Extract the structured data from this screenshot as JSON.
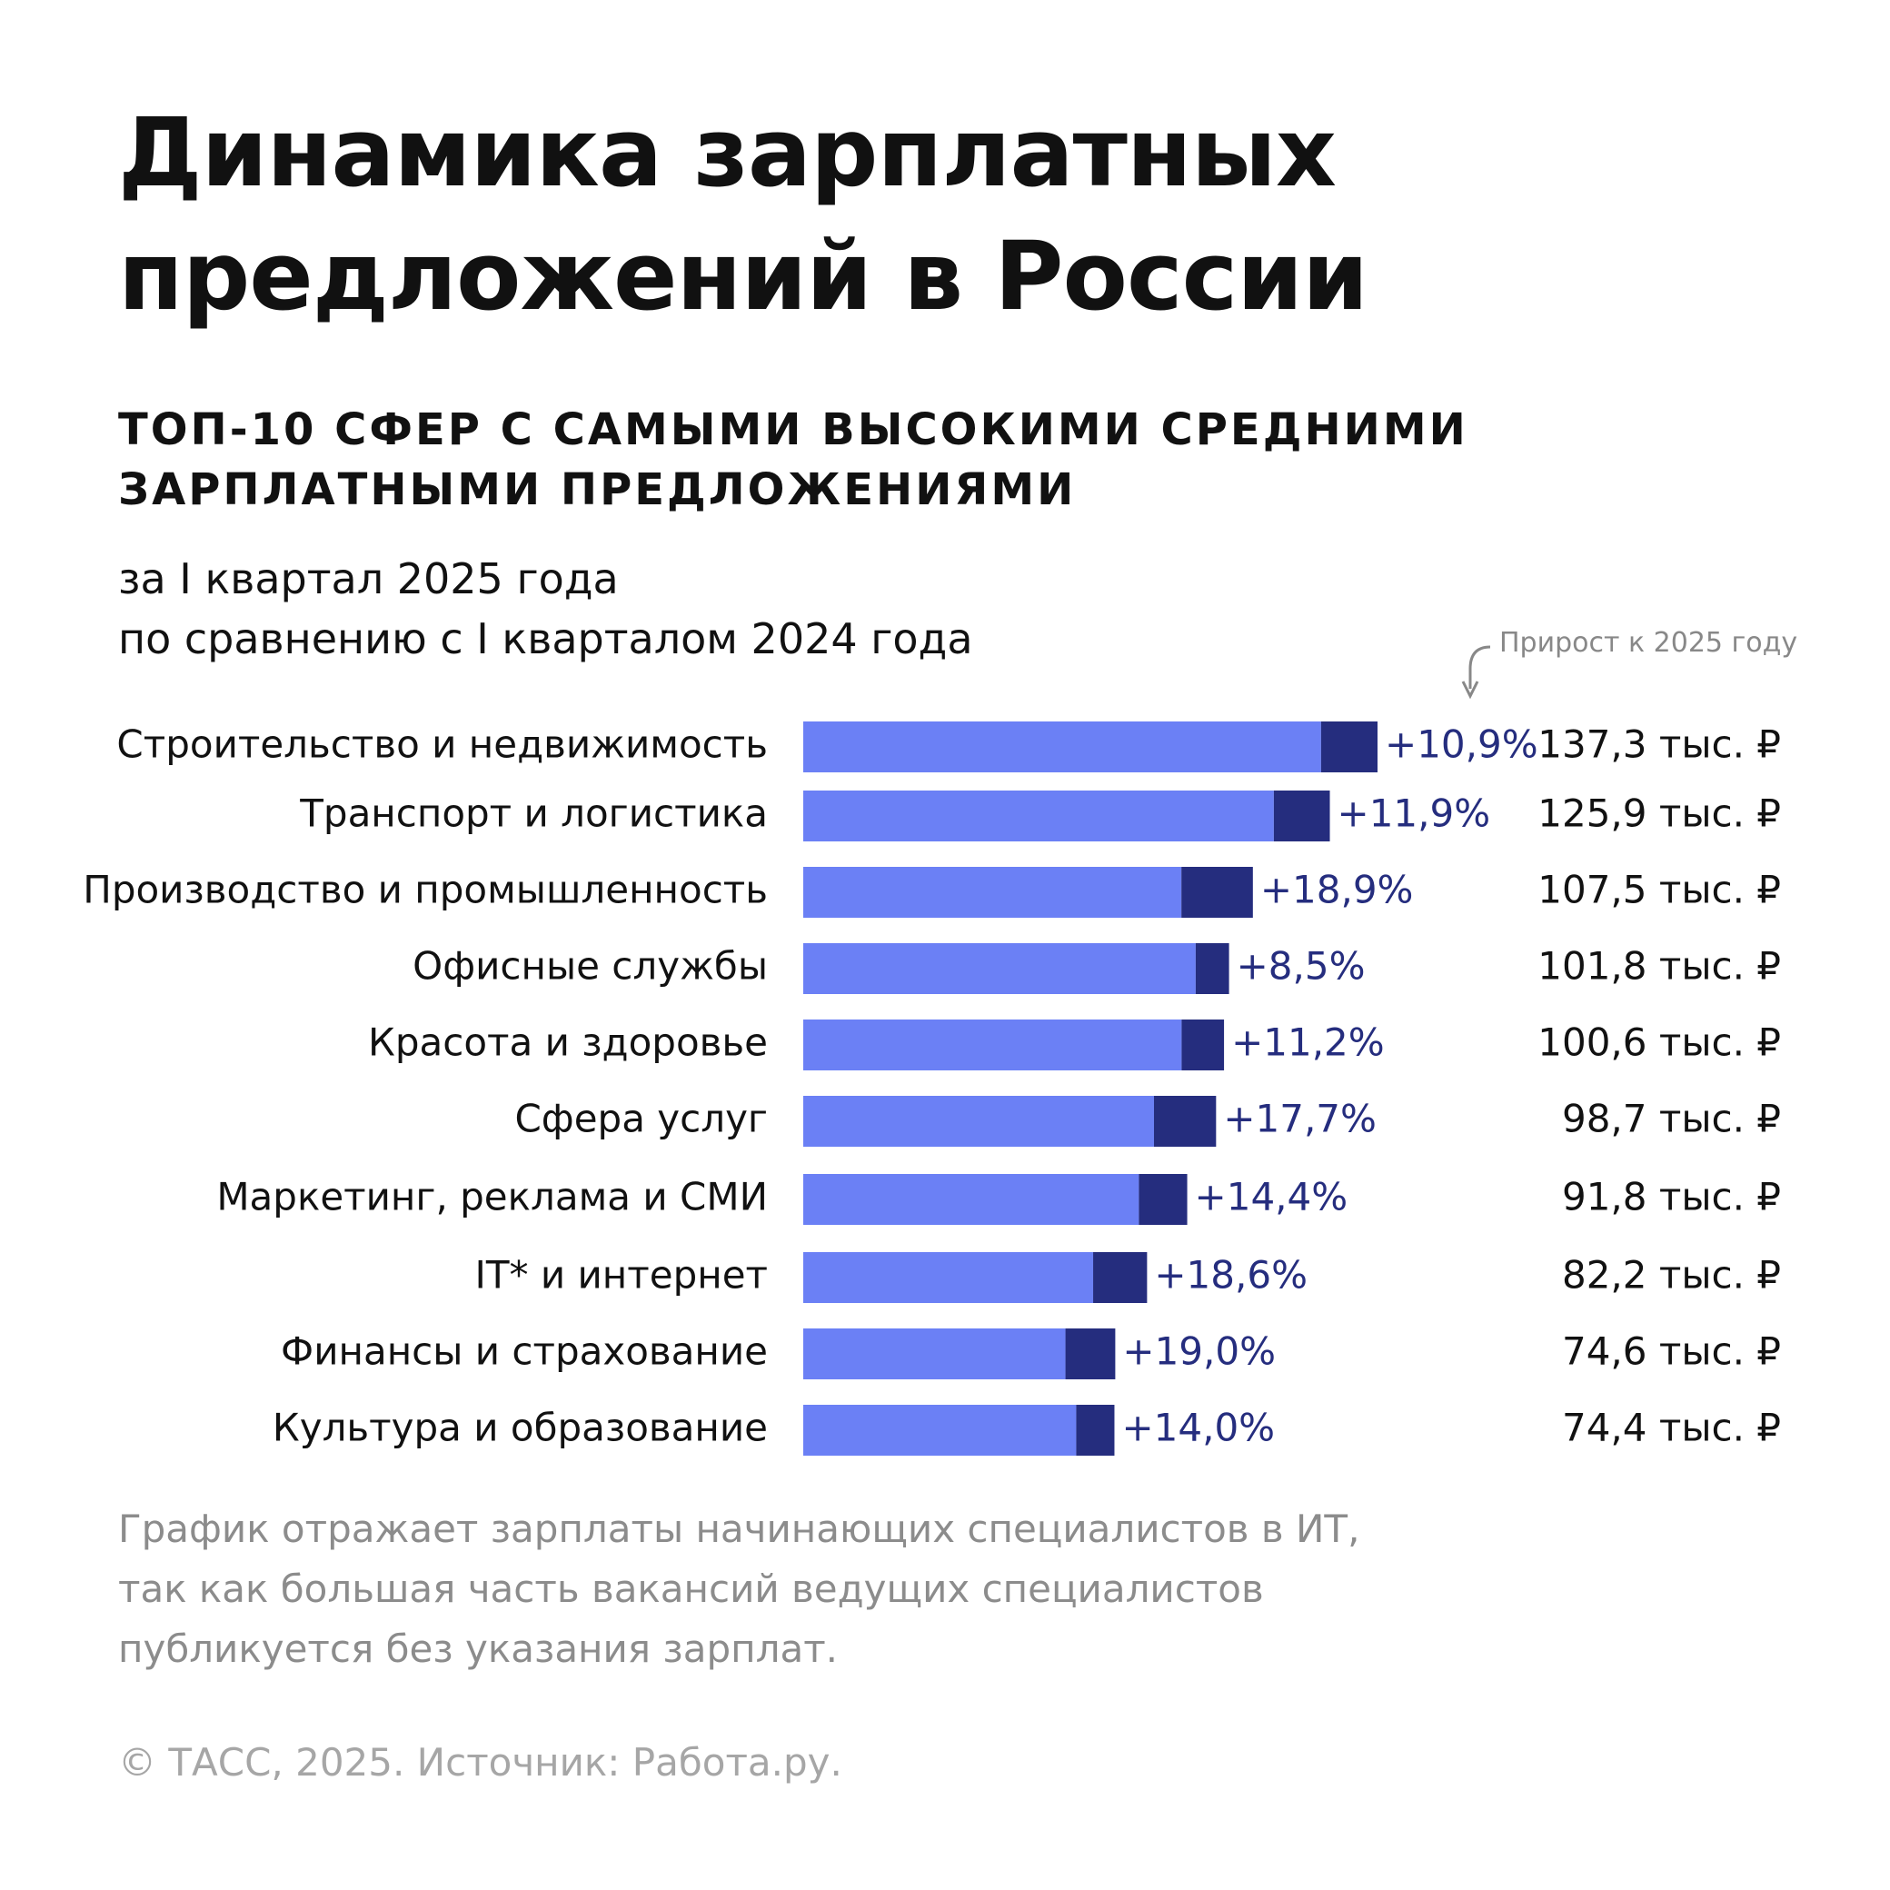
{
  "title_lines": [
    "Динамика зарплатных",
    "предложений в России"
  ],
  "subtitle_lines": [
    "ТОП-10 СФЕР С САМЫМИ ВЫСОКИМИ СРЕДНИМИ",
    "ЗАРПЛАТНЫМИ ПРЕДЛОЖЕНИЯМИ"
  ],
  "period_lines": [
    "за I квартал 2025 года",
    "по сравнению с I кварталом 2024 года"
  ],
  "growth_note": "Прирост к 2025 году",
  "colors": {
    "base": "#6b80f5",
    "growth": "#252d7e",
    "growth_label": "#252d7e",
    "text": "#111111",
    "muted": "#8c8c8c"
  },
  "chart_data": {
    "type": "bar",
    "orientation": "horizontal",
    "stacked": true,
    "unit": "тыс. ₽",
    "categories": [
      "Строительство и недвижимость",
      "Транспорт и логистика",
      "Производство и промышленность",
      "Офисные службы",
      "Красота и здоровье",
      "Сфера услуг",
      "Маркетинг, реклама и СМИ",
      "IT* и интернет",
      "Финансы и страхование",
      "Культура и образование"
    ],
    "values_2025": [
      137.3,
      125.9,
      107.5,
      101.8,
      100.6,
      98.7,
      91.8,
      82.2,
      74.6,
      74.4
    ],
    "value_labels": [
      "137,3 тыс. ₽",
      "125,9 тыс. ₽",
      "107,5 тыс. ₽",
      "101,8 тыс. ₽",
      "100,6 тыс. ₽",
      "98,7 тыс. ₽",
      "91,8 тыс. ₽",
      "82,2 тыс. ₽",
      "74,6 тыс. ₽",
      "74,4 тыс. ₽"
    ],
    "growth_pct": [
      10.9,
      11.9,
      18.9,
      8.5,
      11.2,
      17.7,
      14.4,
      18.6,
      19.0,
      14.0
    ],
    "growth_labels": [
      "+10,9%",
      "+11,9%",
      "+18,9%",
      "+8,5%",
      "+11,2%",
      "+17,7%",
      "+14,4%",
      "+18,6%",
      "+19,0%",
      "+14,0%"
    ],
    "xlim": [
      0,
      137.3
    ],
    "grid": false,
    "legend": "none"
  },
  "footnote_lines": [
    "График отражает зарплаты начинающих специалистов в ИТ,",
    "так как большая часть вакансий ведущих специалистов",
    "публикуется без указания зарплат."
  ],
  "source": "© ТАСС, 2025. Источник: Работа.ру."
}
